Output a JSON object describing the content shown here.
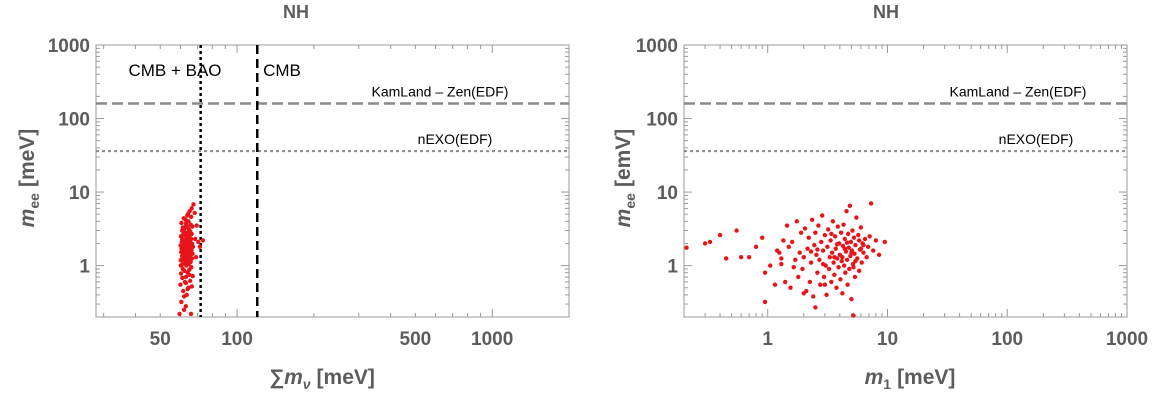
{
  "chart_data": [
    {
      "type": "scatter",
      "title": "NH",
      "ylabel": {
        "main": "m",
        "sub": "ee",
        "unit": "[meV]"
      },
      "xlabel": {
        "sym": "∑m",
        "sub": "ν",
        "unit": "[meV]"
      },
      "x_scale": "log",
      "y_scale": "log",
      "xlim": [
        28,
        2000
      ],
      "ylim": [
        0.2,
        1000
      ],
      "x_ticks": [
        {
          "value": 50,
          "label": "50"
        },
        {
          "value": 100,
          "label": "100"
        },
        {
          "value": 500,
          "label": "500"
        },
        {
          "value": 1000,
          "label": "1000"
        }
      ],
      "y_ticks": [
        {
          "value": 1,
          "label": "1"
        },
        {
          "value": 10,
          "label": "10"
        },
        {
          "value": 100,
          "label": "100"
        },
        {
          "value": 1000,
          "label": "1000"
        }
      ],
      "grid": false,
      "point_color": "#e8141a",
      "hlines": [
        {
          "y": 160,
          "style": "dashed",
          "color": "#8a8a8a",
          "label": "KamLand – Zen(EDF)"
        },
        {
          "y": 36,
          "style": "dotted",
          "color": "#8a8a8a",
          "label": "nEXO(EDF)"
        }
      ],
      "vlines": [
        {
          "x": 72,
          "style": "dotted",
          "color": "#000000",
          "label": "CMB + BAO"
        },
        {
          "x": 120,
          "style": "dashed",
          "color": "#000000",
          "label": "CMB"
        }
      ],
      "points": [
        [
          59.5,
          0.22
        ],
        [
          62,
          0.25
        ],
        [
          66,
          0.22
        ],
        [
          60.5,
          0.32
        ],
        [
          63.5,
          0.4
        ],
        [
          61.5,
          0.45
        ],
        [
          64.5,
          0.5
        ],
        [
          60,
          0.55
        ],
        [
          66.5,
          0.52
        ],
        [
          62.5,
          0.6
        ],
        [
          65.5,
          0.62
        ],
        [
          61,
          0.68
        ],
        [
          63,
          0.7
        ],
        [
          67,
          0.72
        ],
        [
          60.3,
          0.78
        ],
        [
          64,
          0.8
        ],
        [
          62.2,
          0.85
        ],
        [
          65,
          0.88
        ],
        [
          61.3,
          0.9
        ],
        [
          66.2,
          0.95
        ],
        [
          63.3,
          1.0
        ],
        [
          60.7,
          1.02
        ],
        [
          64.7,
          1.05
        ],
        [
          62.8,
          1.08
        ],
        [
          61.8,
          1.1
        ],
        [
          65.8,
          1.12
        ],
        [
          63.8,
          1.15
        ],
        [
          60.2,
          1.18
        ],
        [
          64.2,
          1.2
        ],
        [
          62.4,
          1.22
        ],
        [
          66.6,
          1.25
        ],
        [
          61.4,
          1.28
        ],
        [
          63.6,
          1.3
        ],
        [
          65.4,
          1.33
        ],
        [
          60.9,
          1.35
        ],
        [
          64.9,
          1.38
        ],
        [
          62.7,
          1.4
        ],
        [
          61.6,
          1.43
        ],
        [
          66.9,
          1.45
        ],
        [
          63.1,
          1.48
        ],
        [
          65.1,
          1.5
        ],
        [
          60.4,
          1.53
        ],
        [
          64.4,
          1.55
        ],
        [
          62.1,
          1.58
        ],
        [
          61.2,
          1.6
        ],
        [
          66.3,
          1.63
        ],
        [
          63.9,
          1.65
        ],
        [
          65.6,
          1.68
        ],
        [
          60.6,
          1.7
        ],
        [
          64.6,
          1.73
        ],
        [
          62.9,
          1.75
        ],
        [
          61.9,
          1.78
        ],
        [
          67.2,
          1.8
        ],
        [
          63.4,
          1.83
        ],
        [
          65.3,
          1.85
        ],
        [
          60.1,
          1.88
        ],
        [
          64.1,
          1.9
        ],
        [
          62.3,
          1.93
        ],
        [
          61.7,
          1.95
        ],
        [
          66.7,
          1.98
        ],
        [
          63.7,
          2.0
        ],
        [
          65.7,
          2.05
        ],
        [
          60.8,
          2.1
        ],
        [
          64.8,
          2.15
        ],
        [
          62.6,
          2.2
        ],
        [
          61.1,
          2.25
        ],
        [
          66.1,
          2.3
        ],
        [
          63.2,
          2.35
        ],
        [
          65.2,
          2.4
        ],
        [
          68.5,
          2.3
        ],
        [
          70.5,
          2.1
        ],
        [
          73.5,
          2.2
        ],
        [
          60.3,
          2.5
        ],
        [
          64.3,
          2.55
        ],
        [
          62.5,
          2.6
        ],
        [
          61.5,
          2.65
        ],
        [
          66.4,
          2.7
        ],
        [
          63.5,
          2.8
        ],
        [
          65.5,
          2.9
        ],
        [
          60.9,
          3.0
        ],
        [
          64.9,
          3.1
        ],
        [
          62.2,
          3.2
        ],
        [
          61.3,
          3.3
        ],
        [
          66.8,
          3.4
        ],
        [
          63.3,
          3.5
        ],
        [
          65.8,
          3.6
        ],
        [
          60.5,
          3.8
        ],
        [
          64.5,
          4.0
        ],
        [
          62.8,
          4.2
        ],
        [
          61.8,
          4.4
        ],
        [
          66.1,
          4.6
        ],
        [
          63.8,
          4.8
        ],
        [
          64.2,
          5.0
        ],
        [
          65.2,
          5.5
        ],
        [
          66.4,
          6.0
        ],
        [
          67.5,
          6.8
        ],
        [
          68.2,
          5.2
        ],
        [
          69.5,
          3.5
        ],
        [
          71.5,
          1.8
        ],
        [
          69,
          1.3
        ],
        [
          60.2,
          1.0
        ],
        [
          62,
          1.3
        ],
        [
          64,
          1.6
        ],
        [
          63,
          2.0
        ],
        [
          61,
          2.3
        ],
        [
          65,
          2.6
        ],
        [
          62,
          2.9
        ],
        [
          64,
          3.3
        ],
        [
          63,
          3.7
        ],
        [
          65,
          0.75
        ],
        [
          63,
          0.58
        ],
        [
          64,
          0.48
        ],
        [
          62,
          0.38
        ],
        [
          63,
          0.28
        ]
      ]
    },
    {
      "type": "scatter",
      "title": "NH",
      "ylabel": {
        "main": "m",
        "sub": "ee",
        "unit": "[emV]"
      },
      "xlabel": {
        "sym": "m",
        "sub": "1",
        "unit": "[meV]"
      },
      "x_scale": "log",
      "y_scale": "log",
      "xlim": [
        0.2,
        1000
      ],
      "ylim": [
        0.2,
        1000
      ],
      "x_ticks": [
        {
          "value": 1,
          "label": "1"
        },
        {
          "value": 10,
          "label": "10"
        },
        {
          "value": 100,
          "label": "100"
        },
        {
          "value": 1000,
          "label": "1000"
        }
      ],
      "y_ticks": [
        {
          "value": 1,
          "label": "1"
        },
        {
          "value": 10,
          "label": "10"
        },
        {
          "value": 100,
          "label": "100"
        },
        {
          "value": 1000,
          "label": "1000"
        }
      ],
      "grid": false,
      "point_color": "#e8141a",
      "hlines": [
        {
          "y": 160,
          "style": "dashed",
          "color": "#8a8a8a",
          "label": "KamLand – Zen(EDF)"
        },
        {
          "y": 36,
          "style": "dotted",
          "color": "#8a8a8a",
          "label": "nEXO(EDF)"
        }
      ],
      "vlines": [],
      "points": [
        [
          0.21,
          1.75
        ],
        [
          0.3,
          2.0
        ],
        [
          0.33,
          2.1
        ],
        [
          0.4,
          2.6
        ],
        [
          0.45,
          1.25
        ],
        [
          0.55,
          3.0
        ],
        [
          0.6,
          1.3
        ],
        [
          0.8,
          1.8
        ],
        [
          0.9,
          2.4
        ],
        [
          0.95,
          0.8
        ],
        [
          0.95,
          0.32
        ],
        [
          1.05,
          1.0
        ],
        [
          1.15,
          0.55
        ],
        [
          1.25,
          1.5
        ],
        [
          1.3,
          1.05
        ],
        [
          1.35,
          2.2
        ],
        [
          1.4,
          0.6
        ],
        [
          1.45,
          3.5
        ],
        [
          1.5,
          1.8
        ],
        [
          1.55,
          0.5
        ],
        [
          1.6,
          2.1
        ],
        [
          1.7,
          1.2
        ],
        [
          1.75,
          4.0
        ],
        [
          1.8,
          0.7
        ],
        [
          1.85,
          1.5
        ],
        [
          1.9,
          2.8
        ],
        [
          1.95,
          0.9
        ],
        [
          2.0,
          1.3
        ],
        [
          2.05,
          3.2
        ],
        [
          2.1,
          0.45
        ],
        [
          2.15,
          1.7
        ],
        [
          2.2,
          2.4
        ],
        [
          2.25,
          0.6
        ],
        [
          2.3,
          1.1
        ],
        [
          2.35,
          4.2
        ],
        [
          2.4,
          0.38
        ],
        [
          2.45,
          1.9
        ],
        [
          2.5,
          0.27
        ],
        [
          2.5,
          2.8
        ],
        [
          2.55,
          1.4
        ],
        [
          2.6,
          0.8
        ],
        [
          2.65,
          3.5
        ],
        [
          2.7,
          1.2
        ],
        [
          2.75,
          0.55
        ],
        [
          2.8,
          2.1
        ],
        [
          2.85,
          4.8
        ],
        [
          2.9,
          1.6
        ],
        [
          2.95,
          0.7
        ],
        [
          3.0,
          2.6
        ],
        [
          3.05,
          1.0
        ],
        [
          3.1,
          0.4
        ],
        [
          3.15,
          1.8
        ],
        [
          3.2,
          3.1
        ],
        [
          3.25,
          0.9
        ],
        [
          3.3,
          1.3
        ],
        [
          3.35,
          2.2
        ],
        [
          3.4,
          0.6
        ],
        [
          3.45,
          1.5
        ],
        [
          3.5,
          4.0
        ],
        [
          3.55,
          1.1
        ],
        [
          3.6,
          0.75
        ],
        [
          3.65,
          2.5
        ],
        [
          3.7,
          1.7
        ],
        [
          3.75,
          0.5
        ],
        [
          3.8,
          1.25
        ],
        [
          3.85,
          3.4
        ],
        [
          3.9,
          0.95
        ],
        [
          3.95,
          2.0
        ],
        [
          4.0,
          1.4
        ],
        [
          4.05,
          0.65
        ],
        [
          4.1,
          2.8
        ],
        [
          4.15,
          1.15
        ],
        [
          4.2,
          0.42
        ],
        [
          4.25,
          1.85
        ],
        [
          4.3,
          3.6
        ],
        [
          4.35,
          1.0
        ],
        [
          4.4,
          2.3
        ],
        [
          4.45,
          0.8
        ],
        [
          4.5,
          1.55
        ],
        [
          4.55,
          5.5
        ],
        [
          4.6,
          1.2
        ],
        [
          4.65,
          0.55
        ],
        [
          4.7,
          2.7
        ],
        [
          4.75,
          1.75
        ],
        [
          4.8,
          0.9
        ],
        [
          4.85,
          6.5
        ],
        [
          4.9,
          1.35
        ],
        [
          4.95,
          2.1
        ],
        [
          5.0,
          0.35
        ],
        [
          5.05,
          1.6
        ],
        [
          5.1,
          3.0
        ],
        [
          5.15,
          1.05
        ],
        [
          5.2,
          0.21
        ],
        [
          5.25,
          2.4
        ],
        [
          5.3,
          1.45
        ],
        [
          5.35,
          0.7
        ],
        [
          5.4,
          1.9
        ],
        [
          5.5,
          4.5
        ],
        [
          5.6,
          1.25
        ],
        [
          5.7,
          2.6
        ],
        [
          5.8,
          0.85
        ],
        [
          5.9,
          1.65
        ],
        [
          6.0,
          3.3
        ],
        [
          6.1,
          1.1
        ],
        [
          6.2,
          2.0
        ],
        [
          6.3,
          1.5
        ],
        [
          6.5,
          2.3
        ],
        [
          6.7,
          1.3
        ],
        [
          6.9,
          1.8
        ],
        [
          7.1,
          2.5
        ],
        [
          7.3,
          7.0
        ],
        [
          7.6,
          1.6
        ],
        [
          8.0,
          2.2
        ],
        [
          8.5,
          1.4
        ],
        [
          9.5,
          2.1
        ],
        [
          1.2,
          1.6
        ],
        [
          1.65,
          0.95
        ],
        [
          2.0,
          0.42
        ],
        [
          2.6,
          1.65
        ],
        [
          3.0,
          0.55
        ],
        [
          3.4,
          2.7
        ],
        [
          3.8,
          1.95
        ],
        [
          4.2,
          1.3
        ],
        [
          4.6,
          2.05
        ],
        [
          5.0,
          1.5
        ],
        [
          5.4,
          1.15
        ],
        [
          5.8,
          2.2
        ],
        [
          6.3,
          1.9
        ],
        [
          3.6,
          1.3
        ],
        [
          2.9,
          1.05
        ],
        [
          4.4,
          1.7
        ],
        [
          5.2,
          0.95
        ],
        [
          6.0,
          1.7
        ],
        [
          1.3,
          1.25
        ],
        [
          0.7,
          1.3
        ],
        [
          2.3,
          1.55
        ]
      ]
    }
  ]
}
